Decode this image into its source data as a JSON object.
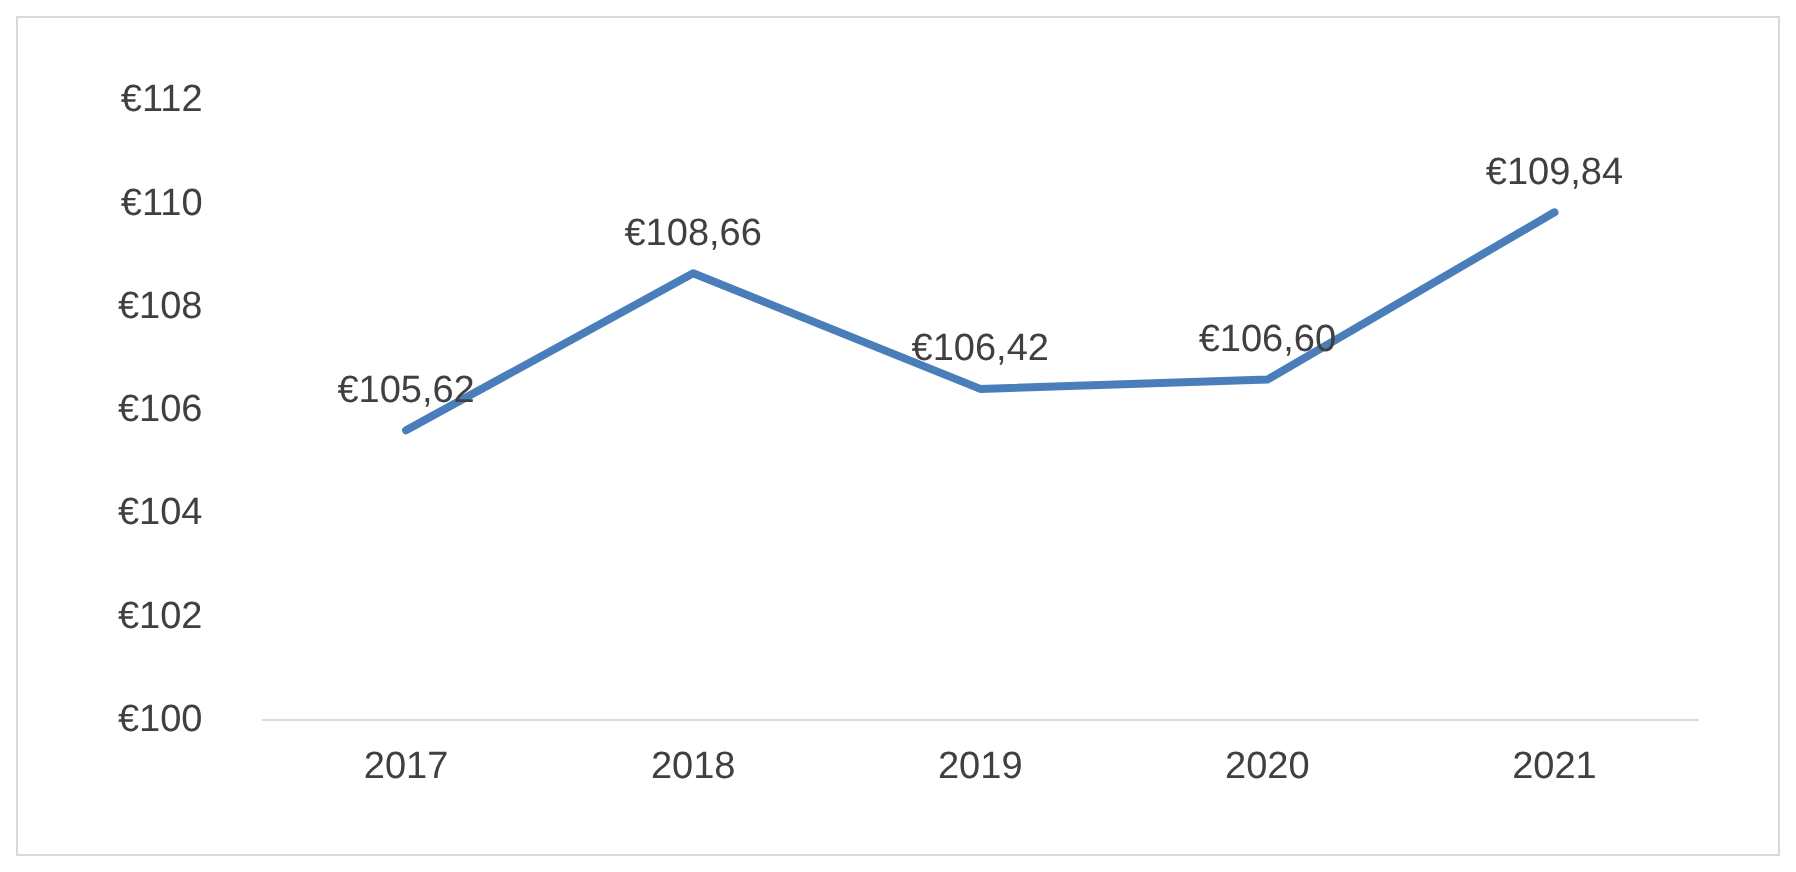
{
  "chart_data": {
    "type": "line",
    "categories": [
      "2017",
      "2018",
      "2019",
      "2020",
      "2021"
    ],
    "series": [
      {
        "color": "#4a7ebb",
        "values": [
          105.62,
          108.66,
          106.42,
          106.6,
          109.84
        ],
        "value_labels": [
          "€105,62",
          "€108,66",
          "€106,42",
          "€106,60",
          "€109,84"
        ]
      }
    ],
    "ylim": [
      100,
      112
    ],
    "yticks": [
      {
        "value": 100,
        "label": "€100"
      },
      {
        "value": 102,
        "label": "€102"
      },
      {
        "value": 104,
        "label": "€104"
      },
      {
        "value": 106,
        "label": "€106"
      },
      {
        "value": 108,
        "label": "€108"
      },
      {
        "value": 110,
        "label": "€110"
      },
      {
        "value": 112,
        "label": "€112"
      }
    ],
    "grid": false,
    "legend": false,
    "marker": "none",
    "line_style": "solid"
  }
}
